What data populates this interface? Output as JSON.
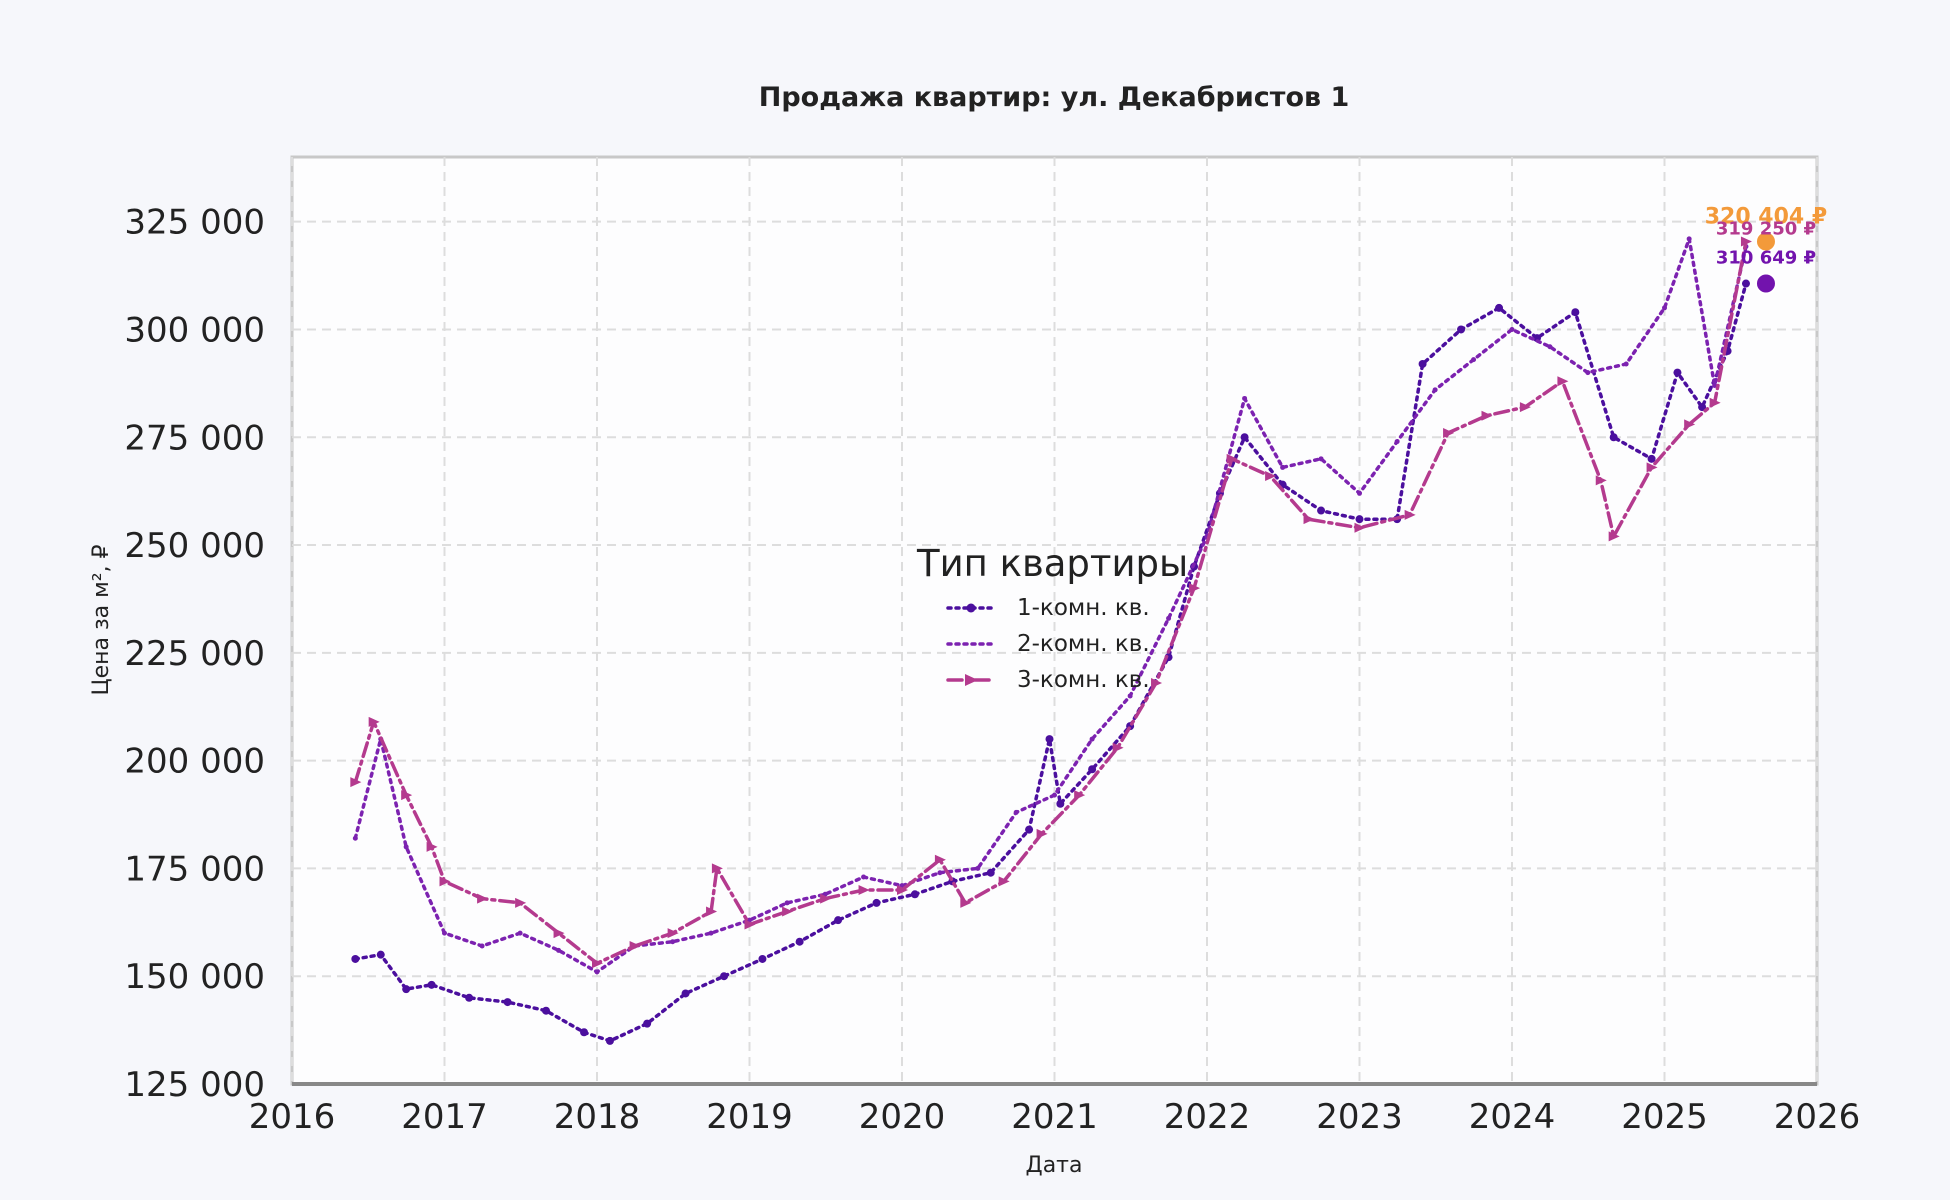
{
  "colors": {
    "background": "#f6f7fb",
    "plot_background": "#fdfdfe",
    "grid": "#dddddd",
    "frame": "#c8c8c8",
    "text": "#222222",
    "series_1": "#4b0f9e",
    "series_2": "#7c22b0",
    "series_3": "#b43a8e",
    "marker_orange": "#f39a3a",
    "marker_purple": "#7213ad"
  },
  "chart_data": {
    "type": "line",
    "title": "Продажа квартир: ул. Декабристов 1",
    "xlabel": "Дата",
    "ylabel": "Цена за м², ₽",
    "xlim": [
      "2016-01-01",
      "2026-01-01"
    ],
    "ylim": [
      125000,
      340000
    ],
    "x_ticks": [
      "2016",
      "2017",
      "2018",
      "2019",
      "2020",
      "2021",
      "2022",
      "2023",
      "2024",
      "2025",
      "2026"
    ],
    "y_ticks": [
      "125 000",
      "150 000",
      "175 000",
      "200 000",
      "225 000",
      "250 000",
      "275 000",
      "300 000",
      "325 000"
    ],
    "grid": true,
    "legend": {
      "title": "Тип квартиры",
      "placement": "center"
    },
    "series": [
      {
        "name": "1-комн. кв.",
        "style": "dotted-markers",
        "color": "#4b0f9e",
        "points": [
          [
            "2016-06-01",
            154000
          ],
          [
            "2016-08-01",
            155000
          ],
          [
            "2016-10-01",
            147000
          ],
          [
            "2016-12-01",
            148000
          ],
          [
            "2017-03-01",
            145000
          ],
          [
            "2017-06-01",
            144000
          ],
          [
            "2017-09-01",
            142000
          ],
          [
            "2017-12-01",
            137000
          ],
          [
            "2018-02-01",
            135000
          ],
          [
            "2018-05-01",
            139000
          ],
          [
            "2018-08-01",
            146000
          ],
          [
            "2018-11-01",
            150000
          ],
          [
            "2019-02-01",
            154000
          ],
          [
            "2019-05-01",
            158000
          ],
          [
            "2019-08-01",
            163000
          ],
          [
            "2019-11-01",
            167000
          ],
          [
            "2020-02-01",
            169000
          ],
          [
            "2020-05-01",
            172000
          ],
          [
            "2020-08-01",
            174000
          ],
          [
            "2020-11-01",
            184000
          ],
          [
            "2020-12-20",
            205000
          ],
          [
            "2021-01-15",
            190000
          ],
          [
            "2021-04-01",
            198000
          ],
          [
            "2021-07-01",
            208000
          ],
          [
            "2021-10-01",
            224000
          ],
          [
            "2021-12-01",
            245000
          ],
          [
            "2022-02-01",
            262000
          ],
          [
            "2022-04-01",
            275000
          ],
          [
            "2022-07-01",
            264000
          ],
          [
            "2022-10-01",
            258000
          ],
          [
            "2023-01-01",
            256000
          ],
          [
            "2023-04-01",
            256000
          ],
          [
            "2023-06-01",
            292000
          ],
          [
            "2023-09-01",
            300000
          ],
          [
            "2023-12-01",
            305000
          ],
          [
            "2024-03-01",
            298000
          ],
          [
            "2024-06-01",
            304000
          ],
          [
            "2024-09-01",
            275000
          ],
          [
            "2024-12-01",
            270000
          ],
          [
            "2025-02-01",
            290000
          ],
          [
            "2025-04-01",
            282000
          ],
          [
            "2025-06-01",
            295000
          ],
          [
            "2025-07-15",
            310649
          ]
        ]
      },
      {
        "name": "2-комн. кв.",
        "style": "dotted",
        "color": "#7c22b0",
        "points": [
          [
            "2016-06-01",
            182000
          ],
          [
            "2016-08-01",
            205000
          ],
          [
            "2016-10-01",
            180000
          ],
          [
            "2017-01-01",
            160000
          ],
          [
            "2017-04-01",
            157000
          ],
          [
            "2017-07-01",
            160000
          ],
          [
            "2017-10-01",
            156000
          ],
          [
            "2018-01-01",
            151000
          ],
          [
            "2018-04-01",
            157000
          ],
          [
            "2018-07-01",
            158000
          ],
          [
            "2018-10-01",
            160000
          ],
          [
            "2019-01-01",
            163000
          ],
          [
            "2019-04-01",
            167000
          ],
          [
            "2019-07-01",
            169000
          ],
          [
            "2019-10-01",
            173000
          ],
          [
            "2020-01-01",
            171000
          ],
          [
            "2020-04-01",
            174000
          ],
          [
            "2020-07-01",
            175000
          ],
          [
            "2020-10-01",
            188000
          ],
          [
            "2021-01-01",
            192000
          ],
          [
            "2021-04-01",
            205000
          ],
          [
            "2021-07-01",
            215000
          ],
          [
            "2021-10-01",
            233000
          ],
          [
            "2022-01-01",
            252000
          ],
          [
            "2022-04-01",
            284000
          ],
          [
            "2022-07-01",
            268000
          ],
          [
            "2022-10-01",
            270000
          ],
          [
            "2023-01-01",
            262000
          ],
          [
            "2023-04-01",
            274000
          ],
          [
            "2023-07-01",
            286000
          ],
          [
            "2023-10-01",
            293000
          ],
          [
            "2024-01-01",
            300000
          ],
          [
            "2024-04-01",
            296000
          ],
          [
            "2024-07-01",
            290000
          ],
          [
            "2024-10-01",
            292000
          ],
          [
            "2025-01-01",
            305000
          ],
          [
            "2025-03-01",
            321000
          ],
          [
            "2025-05-01",
            287000
          ],
          [
            "2025-07-15",
            319250
          ]
        ]
      },
      {
        "name": "3-комн. кв.",
        "style": "dashdot-arrows",
        "color": "#b43a8e",
        "points": [
          [
            "2016-06-01",
            195000
          ],
          [
            "2016-07-15",
            209000
          ],
          [
            "2016-10-01",
            192000
          ],
          [
            "2016-12-01",
            180000
          ],
          [
            "2017-01-01",
            172000
          ],
          [
            "2017-04-01",
            168000
          ],
          [
            "2017-07-01",
            167000
          ],
          [
            "2017-10-01",
            160000
          ],
          [
            "2018-01-01",
            153000
          ],
          [
            "2018-04-01",
            157000
          ],
          [
            "2018-07-01",
            160000
          ],
          [
            "2018-10-01",
            165000
          ],
          [
            "2018-10-15",
            175000
          ],
          [
            "2019-01-01",
            162000
          ],
          [
            "2019-04-01",
            165000
          ],
          [
            "2019-07-01",
            168000
          ],
          [
            "2019-10-01",
            170000
          ],
          [
            "2020-01-01",
            170000
          ],
          [
            "2020-04-01",
            177000
          ],
          [
            "2020-06-01",
            167000
          ],
          [
            "2020-09-01",
            172000
          ],
          [
            "2020-12-01",
            183000
          ],
          [
            "2021-03-01",
            192000
          ],
          [
            "2021-06-01",
            203000
          ],
          [
            "2021-09-01",
            218000
          ],
          [
            "2021-12-01",
            240000
          ],
          [
            "2022-03-01",
            270000
          ],
          [
            "2022-06-01",
            266000
          ],
          [
            "2022-09-01",
            256000
          ],
          [
            "2023-01-01",
            254000
          ],
          [
            "2023-05-01",
            257000
          ],
          [
            "2023-08-01",
            276000
          ],
          [
            "2023-11-01",
            280000
          ],
          [
            "2024-02-01",
            282000
          ],
          [
            "2024-05-01",
            288000
          ],
          [
            "2024-08-01",
            265000
          ],
          [
            "2024-09-01",
            252000
          ],
          [
            "2024-12-01",
            268000
          ],
          [
            "2025-03-01",
            278000
          ],
          [
            "2025-05-01",
            283000
          ],
          [
            "2025-07-15",
            320404
          ]
        ]
      }
    ],
    "end_labels": [
      {
        "text": "320 404 ₽",
        "value": 320404,
        "date": "2025-07-15",
        "color": "#f39a3a"
      },
      {
        "text": "319 250 ₽",
        "value": 319250,
        "date": "2025-07-15",
        "color": "#b43a8e"
      },
      {
        "text": "310 649 ₽",
        "value": 310649,
        "date": "2025-07-15",
        "color": "#7213ad"
      }
    ]
  }
}
